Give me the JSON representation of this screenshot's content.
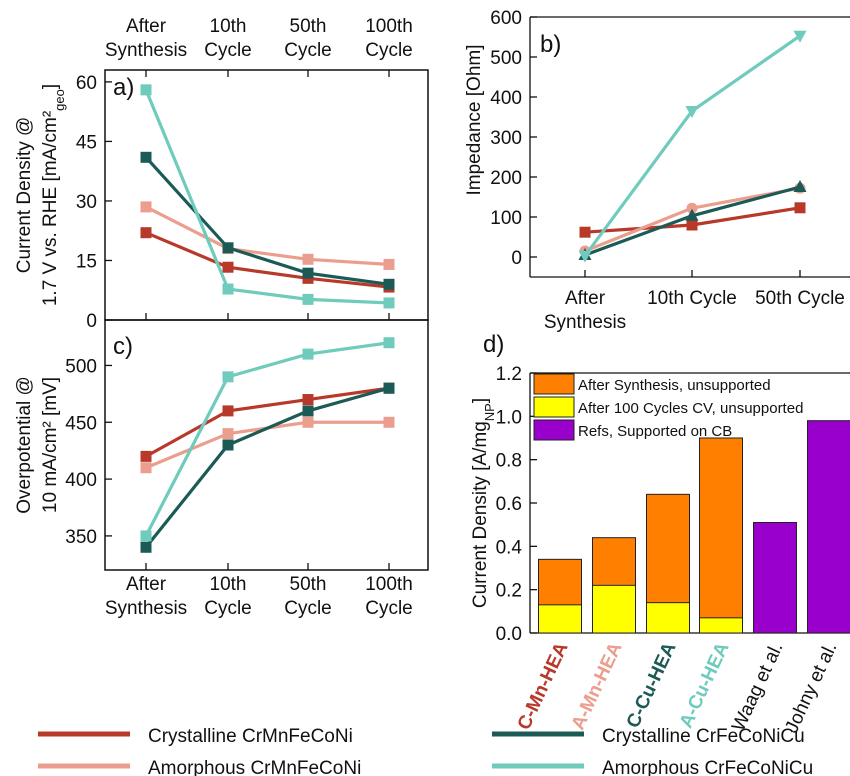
{
  "colors": {
    "c_mn": "#b8382a",
    "a_mn": "#ec9e8e",
    "c_cu": "#1c5a55",
    "a_cu": "#6fcbbc",
    "after_synthesis": "#ff8000",
    "after_100": "#ffff00",
    "refs": "#9900cc"
  },
  "top_categories": [
    "After\nSynthesis",
    "10th\nCycle",
    "50th\nCycle",
    "100th\nCycle"
  ],
  "chart_data": [
    {
      "panel": "a)",
      "type": "line",
      "ylabel_line1": "Current Density @",
      "ylabel_line2": "1.7 V vs. RHE [mA/cm²",
      "ylabel_sub": "geo",
      "ylabel_end": "]",
      "categories": [
        "After Synthesis",
        "10th Cycle",
        "50th Cycle",
        "100th Cycle"
      ],
      "ylim": [
        0,
        63
      ],
      "yticks": [
        0,
        15,
        30,
        45,
        60
      ],
      "series": [
        {
          "name": "Crystalline CrMnFeCoNi",
          "color_key": "c_mn",
          "marker": "square",
          "values": [
            22,
            13.3,
            10.5,
            8.3
          ]
        },
        {
          "name": "Amorphous CrMnFeCoNi",
          "color_key": "a_mn",
          "marker": "square",
          "values": [
            28.5,
            18,
            15.3,
            14
          ]
        },
        {
          "name": "Crystalline CrFeCoNiCu",
          "color_key": "c_cu",
          "marker": "square",
          "values": [
            41,
            18.2,
            11.8,
            9
          ]
        },
        {
          "name": "Amorphous CrFeCoNiCu",
          "color_key": "a_cu",
          "marker": "square",
          "values": [
            58,
            7.8,
            5.2,
            4.3
          ]
        }
      ]
    },
    {
      "panel": "b)",
      "type": "line",
      "ylabel": "Impedance [Ohm]",
      "categories": [
        "After\nSynthesis",
        "10th Cycle",
        "50th Cycle"
      ],
      "ylim": [
        -50,
        600
      ],
      "yticks": [
        0,
        100,
        200,
        300,
        400,
        500,
        600
      ],
      "series": [
        {
          "name": "Crystalline CrMnFeCoNi",
          "color_key": "c_mn",
          "marker": "square",
          "values": [
            62,
            80,
            123
          ]
        },
        {
          "name": "Amorphous CrMnFeCoNi",
          "color_key": "a_mn",
          "marker": "circle",
          "values": [
            15,
            122,
            172
          ]
        },
        {
          "name": "Crystalline CrFeCoNiCu",
          "color_key": "c_cu",
          "marker": "triangle-up",
          "values": [
            5,
            103,
            175
          ]
        },
        {
          "name": "Amorphous CrFeCoNiCu",
          "color_key": "a_cu",
          "marker": "triangle-down",
          "values": [
            3,
            365,
            553
          ]
        }
      ]
    },
    {
      "panel": "c)",
      "type": "line",
      "ylabel_line1": "Overpotential @",
      "ylabel_line2": "10 mA/cm² [mV]",
      "categories": [
        "After\nSynthesis",
        "10th\nCycle",
        "50th\nCycle",
        "100th\nCycle"
      ],
      "ylim": [
        320,
        540
      ],
      "yticks": [
        350,
        400,
        450,
        500
      ],
      "series": [
        {
          "name": "Crystalline CrMnFeCoNi",
          "color_key": "c_mn",
          "marker": "square",
          "values": [
            420,
            460,
            470,
            480
          ]
        },
        {
          "name": "Amorphous CrMnFeCoNi",
          "color_key": "a_mn",
          "marker": "square",
          "values": [
            410,
            440,
            450,
            450
          ]
        },
        {
          "name": "Crystalline CrFeCoNiCu",
          "color_key": "c_cu",
          "marker": "square",
          "values": [
            340,
            430,
            460,
            480
          ]
        },
        {
          "name": "Amorphous CrFeCoNiCu",
          "color_key": "a_cu",
          "marker": "square",
          "values": [
            350,
            490,
            510,
            520
          ]
        }
      ]
    },
    {
      "panel": "d)",
      "type": "bar",
      "ylabel_main": "Current Density [A/mg",
      "ylabel_sub": "NP",
      "ylabel_end": "]",
      "ylim": [
        0,
        1.2
      ],
      "yticks": [
        "0.0",
        "0.2",
        "0.4",
        "0.6",
        "0.8",
        "1.0",
        "1.2"
      ],
      "legend": [
        {
          "label": "After Synthesis, unsupported",
          "color_key": "after_synthesis"
        },
        {
          "label": "After 100 Cycles CV, unsupported",
          "color_key": "after_100"
        },
        {
          "label": "Refs, Supported on CB",
          "color_key": "refs"
        }
      ],
      "categories": [
        {
          "label": "C-Mn-HEA",
          "color_key": "c_mn"
        },
        {
          "label": "A-Mn-HEA",
          "color_key": "a_mn"
        },
        {
          "label": "C-Cu-HEA",
          "color_key": "c_cu"
        },
        {
          "label": "A-Cu-HEA",
          "color_key": "a_cu"
        },
        {
          "label": "Waag et al.",
          "color_key": "text"
        },
        {
          "label": "Johny et al.",
          "color_key": "text"
        }
      ],
      "series": [
        {
          "name": "After Synthesis, unsupported",
          "values": [
            0.34,
            0.44,
            0.64,
            0.9,
            null,
            null
          ]
        },
        {
          "name": "After 100 Cycles CV, unsupported",
          "values": [
            0.13,
            0.22,
            0.14,
            0.07,
            null,
            null
          ]
        },
        {
          "name": "Refs, Supported on CB",
          "values": [
            null,
            null,
            null,
            null,
            0.51,
            0.98
          ]
        }
      ]
    }
  ],
  "legend": [
    {
      "label": "Crystalline CrMnFeCoNi",
      "color_key": "c_mn"
    },
    {
      "label": "Crystalline CrFeCoNiCu",
      "color_key": "c_cu"
    },
    {
      "label": "Amorphous CrMnFeCoNi",
      "color_key": "a_mn"
    },
    {
      "label": "Amorphous CrFeCoNiCu",
      "color_key": "a_cu"
    }
  ]
}
